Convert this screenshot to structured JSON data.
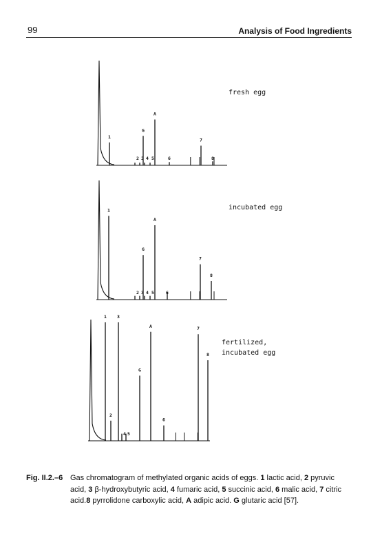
{
  "header": {
    "page_number": "99",
    "title": "Analysis of Food Ingredients"
  },
  "figure": {
    "panels": [
      {
        "label": "fresh egg",
        "peaks": [
          {
            "id": "1",
            "height": 0.35
          },
          {
            "id": "2",
            "height": 0.04
          },
          {
            "id": "3",
            "height": 0.04
          },
          {
            "id": "4",
            "height": 0.04
          },
          {
            "id": "5",
            "height": 0.04
          },
          {
            "id": "G",
            "height": 0.45
          },
          {
            "id": "A",
            "height": 0.7
          },
          {
            "id": "6",
            "height": 0.05
          },
          {
            "id": "7",
            "height": 0.3
          },
          {
            "id": "8",
            "height": 0.06
          }
        ]
      },
      {
        "label": "incubated egg",
        "peaks": [
          {
            "id": "1",
            "height": 0.9
          },
          {
            "id": "2",
            "height": 0.04
          },
          {
            "id": "3",
            "height": 0.04
          },
          {
            "id": "4",
            "height": 0.04
          },
          {
            "id": "5",
            "height": 0.04
          },
          {
            "id": "G",
            "height": 0.48
          },
          {
            "id": "A",
            "height": 0.8
          },
          {
            "id": "6",
            "height": 0.08
          },
          {
            "id": "7",
            "height": 0.38
          },
          {
            "id": "8",
            "height": 0.2
          }
        ]
      },
      {
        "label_lines": [
          "fertilized,",
          "incubated egg"
        ],
        "peaks": [
          {
            "id": "1",
            "height": 1.0
          },
          {
            "id": "2",
            "height": 0.17
          },
          {
            "id": "3",
            "height": 1.0
          },
          {
            "id": "4",
            "height": 0.06
          },
          {
            "id": "5",
            "height": 0.06
          },
          {
            "id": "G",
            "height": 0.55
          },
          {
            "id": "A",
            "height": 0.92
          },
          {
            "id": "6",
            "height": 0.13
          },
          {
            "id": "7",
            "height": 0.9
          },
          {
            "id": "8",
            "height": 0.68
          }
        ]
      }
    ]
  },
  "caption": {
    "label": "Fig. II.2.–6",
    "segments": [
      {
        "t": "Gas chromatogram of methylated organic acids of eggs. ",
        "b": false
      },
      {
        "t": "1",
        "b": true
      },
      {
        "t": " lactic acid, ",
        "b": false
      },
      {
        "t": "2",
        "b": true
      },
      {
        "t": " pyruvic acid, ",
        "b": false
      },
      {
        "t": "3",
        "b": true
      },
      {
        "t": " β-hydroxybutyric acid, ",
        "b": false
      },
      {
        "t": "4",
        "b": true
      },
      {
        "t": " fumaric acid, ",
        "b": false
      },
      {
        "t": "5",
        "b": true
      },
      {
        "t": " succinic acid, ",
        "b": false
      },
      {
        "t": "6",
        "b": true
      },
      {
        "t": " malic acid, ",
        "b": false
      },
      {
        "t": "7",
        "b": true
      },
      {
        "t": " citric acid.",
        "b": false
      },
      {
        "t": "8",
        "b": true
      },
      {
        "t": " pyrrolidone carboxylic acid, ",
        "b": false
      },
      {
        "t": "A",
        "b": true
      },
      {
        "t": " adipic acid. ",
        "b": false
      },
      {
        "t": "G",
        "b": true
      },
      {
        "t": " glutaric acid [57].",
        "b": false
      }
    ]
  }
}
